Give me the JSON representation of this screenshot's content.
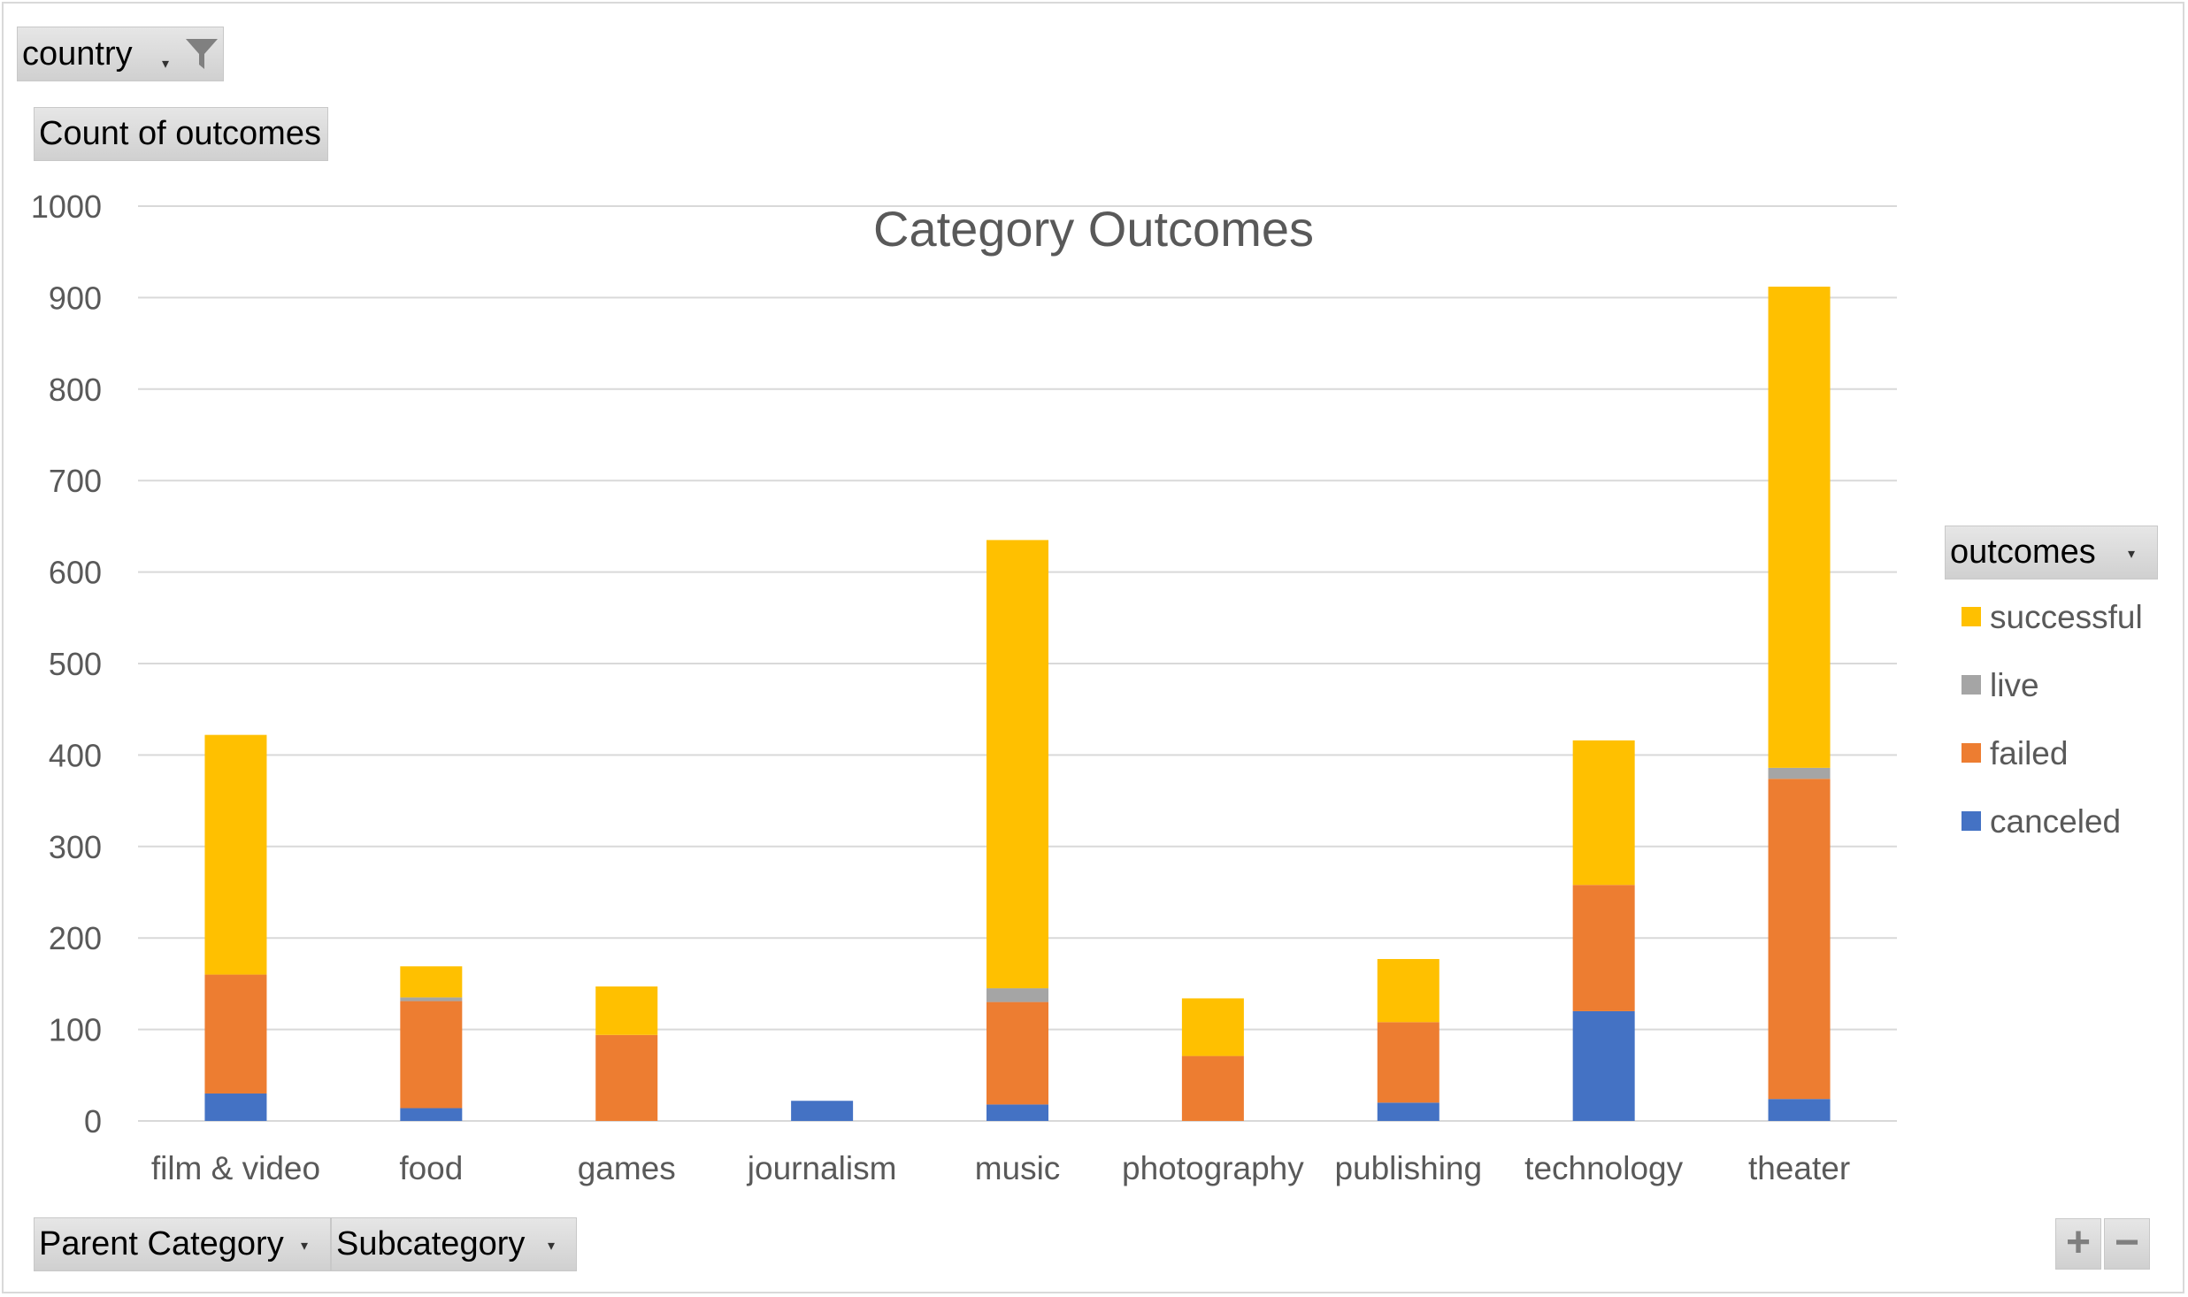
{
  "filters": {
    "country_label": "country",
    "values_label": "Count of outcomes",
    "legend_field_label": "outcomes",
    "axis_field_1": "Parent Category",
    "axis_field_2": "Subcategory"
  },
  "icons": {
    "filter": "filter-funnel-icon",
    "dropdown": "dropdown-arrow-icon",
    "zoom_in": "plus-icon",
    "zoom_out": "minus-icon"
  },
  "zoom": {
    "plus": "+",
    "minus": "−"
  },
  "chart_data": {
    "type": "bar",
    "stacked": true,
    "title": "Category Outcomes",
    "xlabel": "",
    "ylabel": "",
    "ylim": [
      0,
      1000
    ],
    "yticks": [
      0,
      100,
      200,
      300,
      400,
      500,
      600,
      700,
      800,
      900,
      1000
    ],
    "grid": true,
    "legend_position": "right",
    "categories": [
      "film & video",
      "food",
      "games",
      "journalism",
      "music",
      "photography",
      "publishing",
      "technology",
      "theater"
    ],
    "series": [
      {
        "name": "canceled",
        "color": "#4472C4",
        "values": [
          30,
          14,
          0,
          22,
          18,
          0,
          20,
          120,
          24
        ]
      },
      {
        "name": "failed",
        "color": "#ED7D31",
        "values": [
          130,
          117,
          94,
          0,
          112,
          71,
          88,
          138,
          350
        ]
      },
      {
        "name": "live",
        "color": "#A5A5A5",
        "values": [
          0,
          4,
          0,
          0,
          15,
          0,
          0,
          0,
          12
        ]
      },
      {
        "name": "successful",
        "color": "#FFC000",
        "values": [
          262,
          34,
          53,
          0,
          490,
          63,
          69,
          158,
          526
        ]
      }
    ],
    "legend_order": [
      "successful",
      "live",
      "failed",
      "canceled"
    ]
  }
}
